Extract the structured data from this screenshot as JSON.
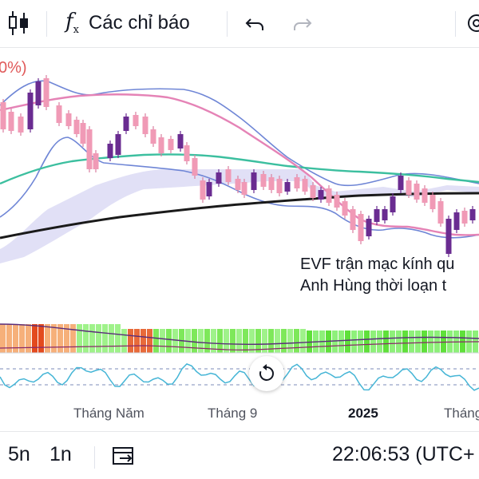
{
  "toolbar": {
    "candle_icon": "candlestick-icon",
    "indicators_icon": "fx-icon",
    "indicators_label": "Các chỉ báo",
    "undo_icon": "undo-icon",
    "redo_icon": "redo-icon",
    "settings_icon": "gear-icon"
  },
  "chart": {
    "percent_fragment": "0%)",
    "annotation_line1": "EVF trận mạc kính qu",
    "annotation_line2": "Anh Hùng thời loạn t",
    "colors": {
      "candle_up": "#6a2c91",
      "candle_down": "#f09ab6",
      "bollinger": "#6f86d6",
      "ma_pink": "#e583b6",
      "ma_teal": "#3cbf9f",
      "ma_black": "#1a1a1a",
      "cloud": "#c9c6ee"
    }
  },
  "time_axis": {
    "ticks": [
      "Tháng Năm",
      "Tháng 9",
      "2025",
      "Tháng"
    ]
  },
  "reset_icon": "reset-icon",
  "bottom_bar": {
    "range_5y": "5n",
    "range_1y": "1n",
    "goto_date_icon": "calendar-goto-icon",
    "clock": "22:06:53 (UTC+"
  }
}
